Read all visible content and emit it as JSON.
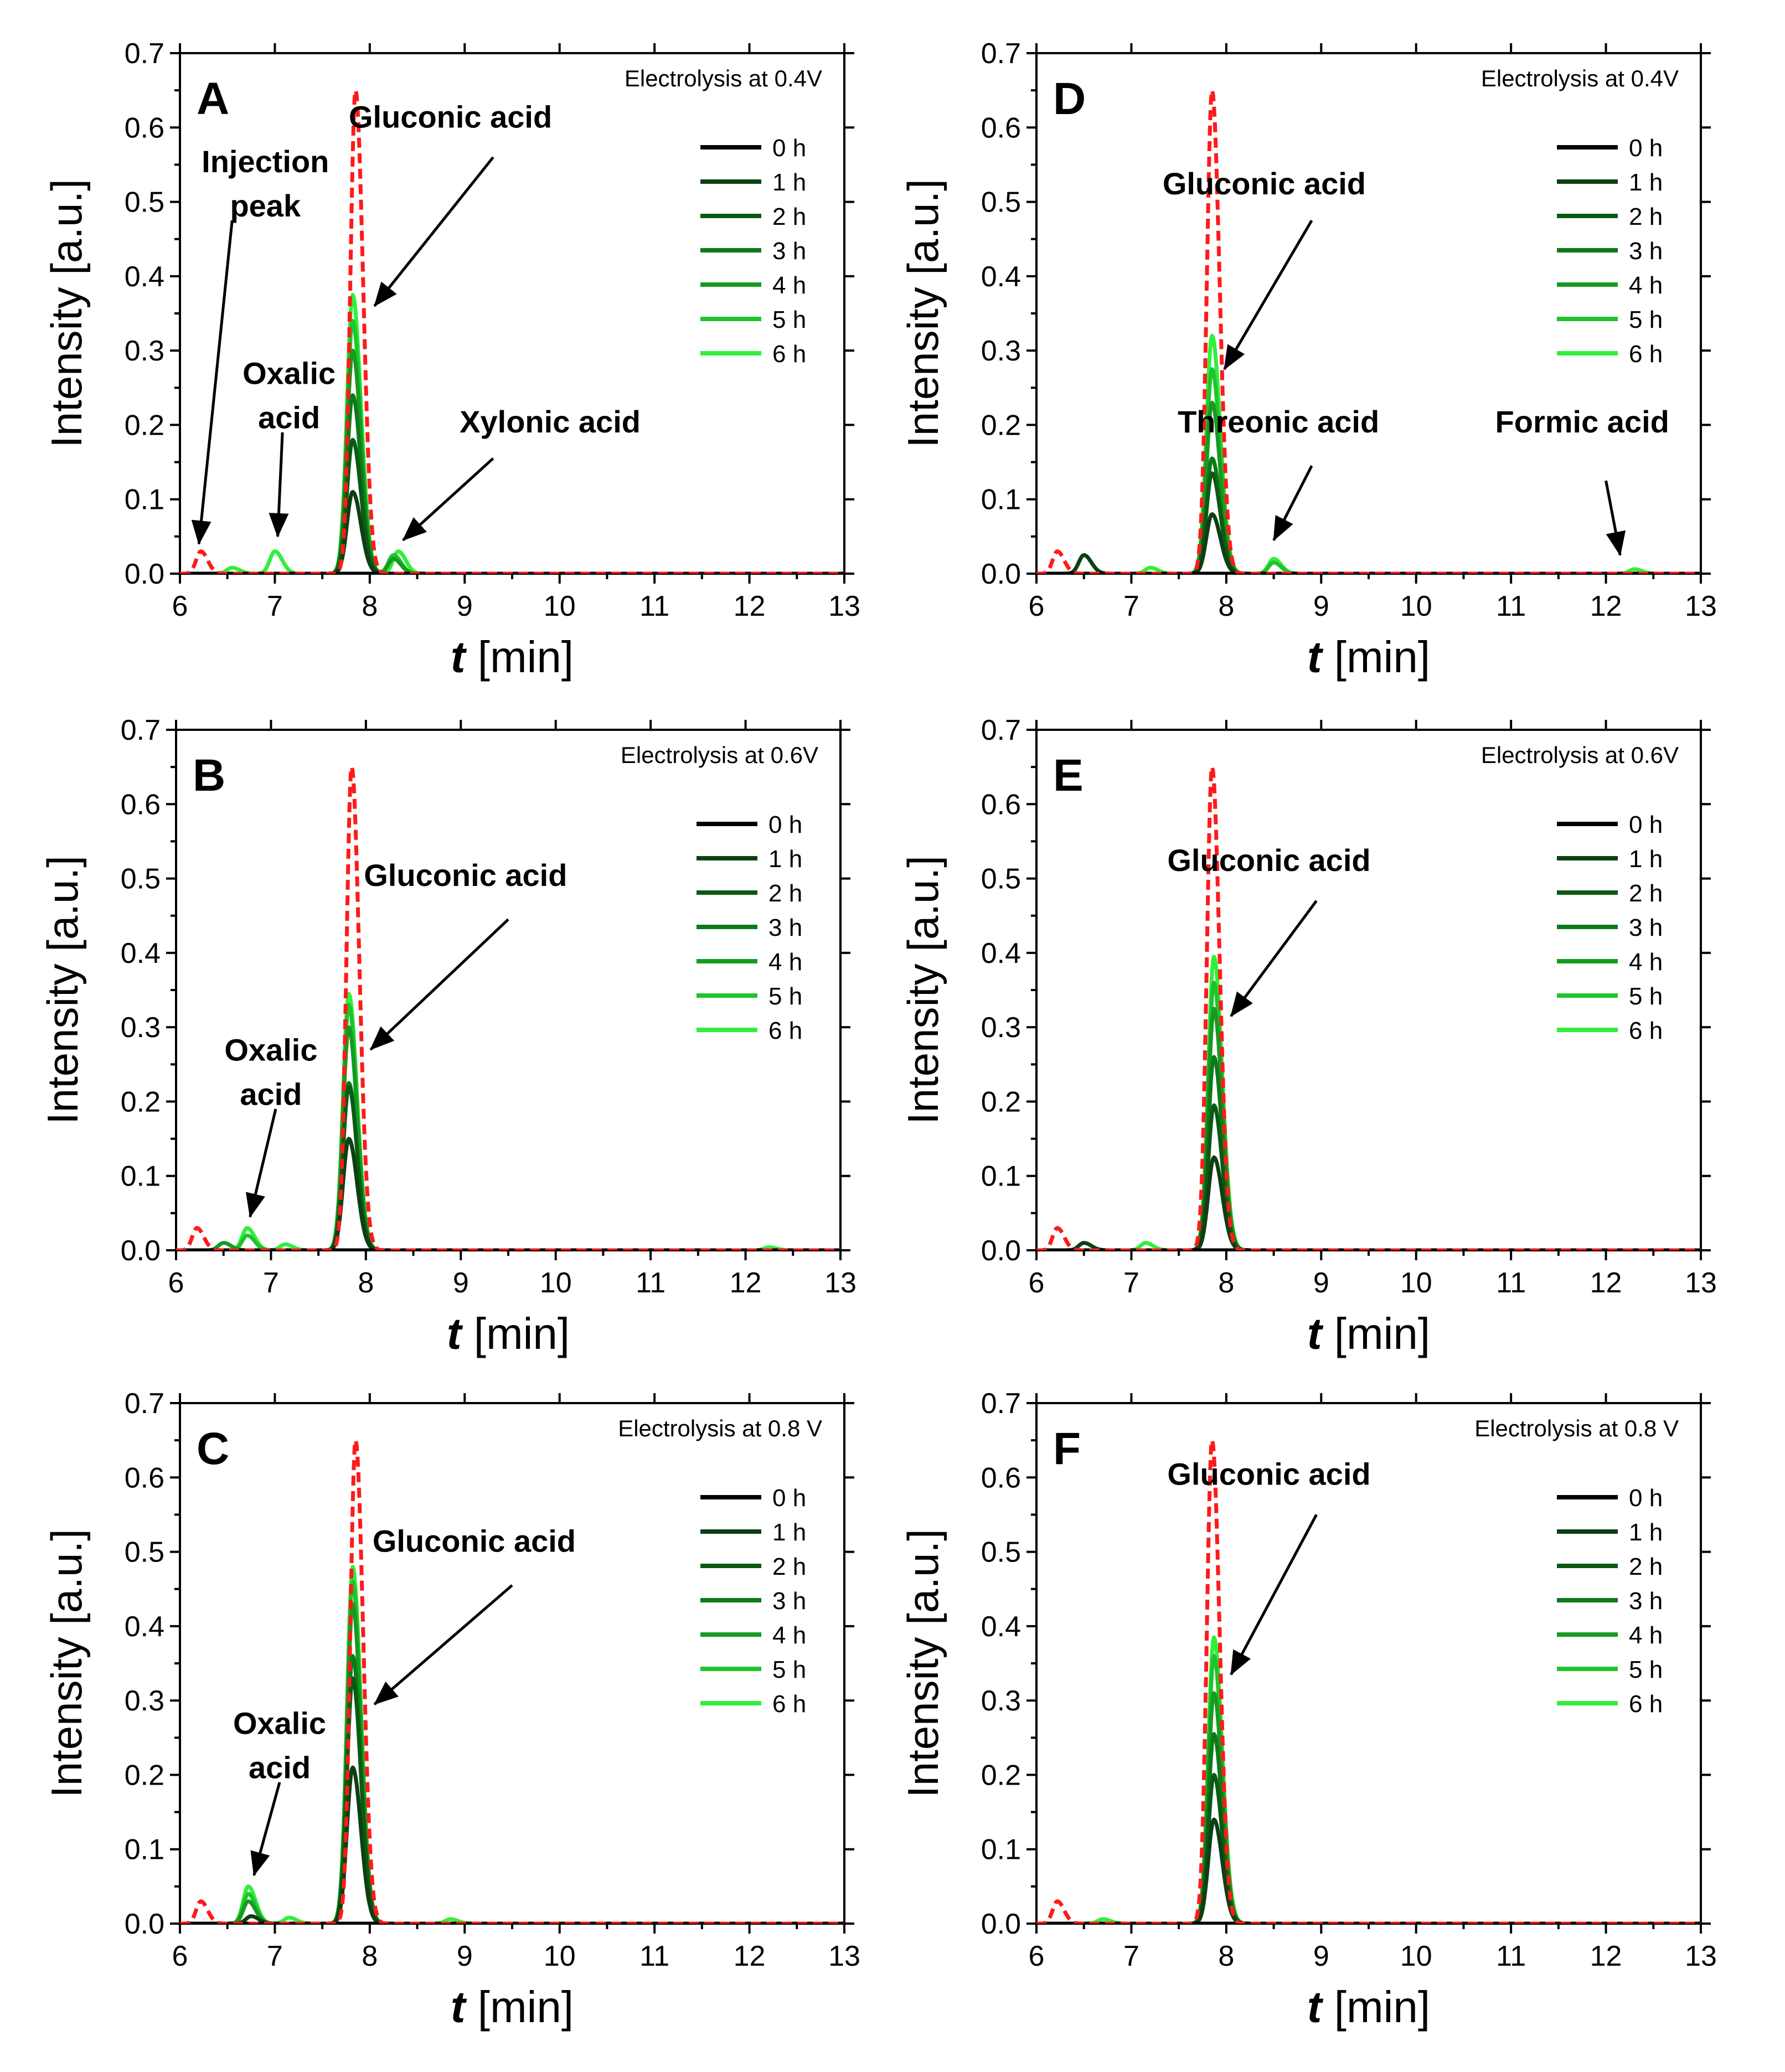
{
  "colors": {
    "reference_dashed": "#ff1a1a",
    "series": [
      "#000000",
      "#0c3f14",
      "#0a5a14",
      "#0b7a19",
      "#169a22",
      "#1fc42d",
      "#33ee3c"
    ]
  },
  "chart_data": [
    {
      "panel": "A",
      "type": "line",
      "condition": "Electrolysis at 0.4V",
      "xlabel_var": "t",
      "xlabel_unit": "[min]",
      "ylabel": "Intensity [a.u.]",
      "xlim": [
        6,
        13
      ],
      "ylim": [
        0,
        0.7
      ],
      "xticks": [
        "6",
        "7",
        "8",
        "9",
        "10",
        "11",
        "12",
        "13"
      ],
      "yticks": [
        "0.0",
        "0.1",
        "0.2",
        "0.3",
        "0.4",
        "0.5",
        "0.6",
        "0.7"
      ],
      "legend_position": "top-right",
      "legend": [
        "0 h",
        "1 h",
        "2 h",
        "3 h",
        "4 h",
        "5 h",
        "6 h"
      ],
      "reference_peaks": [
        {
          "x": 6.22,
          "h": 0.03
        },
        {
          "x": 7.85,
          "h": 0.65
        }
      ],
      "series": [
        {
          "name": "0 h",
          "peaks": []
        },
        {
          "name": "1 h",
          "peaks": [
            {
              "x": 7.82,
              "h": 0.11
            }
          ]
        },
        {
          "name": "2 h",
          "peaks": [
            {
              "x": 7.82,
              "h": 0.18
            }
          ]
        },
        {
          "name": "3 h",
          "peaks": [
            {
              "x": 7.82,
              "h": 0.24
            }
          ]
        },
        {
          "name": "4 h",
          "peaks": [
            {
              "x": 7.82,
              "h": 0.3
            },
            {
              "x": 8.25,
              "h": 0.02
            }
          ]
        },
        {
          "name": "5 h",
          "peaks": [
            {
              "x": 7.82,
              "h": 0.34
            },
            {
              "x": 8.25,
              "h": 0.025
            }
          ]
        },
        {
          "name": "6 h",
          "peaks": [
            {
              "x": 6.55,
              "h": 0.008
            },
            {
              "x": 7.0,
              "h": 0.03
            },
            {
              "x": 7.82,
              "h": 0.375
            },
            {
              "x": 8.3,
              "h": 0.03
            }
          ]
        }
      ],
      "annotations": [
        {
          "lines": [
            "Injection",
            "peak"
          ],
          "text_x": 6.9,
          "text_y": 0.54,
          "arrow_from": [
            6.55,
            0.475
          ],
          "arrow_to": [
            6.2,
            0.04
          ]
        },
        {
          "lines": [
            "Oxalic",
            "acid"
          ],
          "text_x": 7.15,
          "text_y": 0.255,
          "arrow_from": [
            7.08,
            0.19
          ],
          "arrow_to": [
            7.03,
            0.05
          ]
        },
        {
          "lines": [
            "Gluconic acid"
          ],
          "text_x": 8.85,
          "text_y": 0.6,
          "arrow_from": [
            9.3,
            0.56
          ],
          "arrow_to": [
            8.05,
            0.36
          ]
        },
        {
          "lines": [
            "Xylonic acid"
          ],
          "text_x": 9.9,
          "text_y": 0.19,
          "arrow_from": [
            9.3,
            0.155
          ],
          "arrow_to": [
            8.35,
            0.045
          ]
        }
      ]
    },
    {
      "panel": "D",
      "type": "line",
      "condition": "Electrolysis at 0.4V",
      "xlabel_var": "t",
      "xlabel_unit": "[min]",
      "ylabel": "Intensity [a.u.]",
      "xlim": [
        6,
        13
      ],
      "ylim": [
        0,
        0.7
      ],
      "xticks": [
        "6",
        "7",
        "8",
        "9",
        "10",
        "11",
        "12",
        "13"
      ],
      "yticks": [
        "0.0",
        "0.1",
        "0.2",
        "0.3",
        "0.4",
        "0.5",
        "0.6",
        "0.7"
      ],
      "legend_position": "top-right",
      "legend": [
        "0 h",
        "1 h",
        "2 h",
        "3 h",
        "4 h",
        "5 h",
        "6 h"
      ],
      "reference_peaks": [
        {
          "x": 6.22,
          "h": 0.03
        },
        {
          "x": 7.85,
          "h": 0.65
        }
      ],
      "series": [
        {
          "name": "0 h",
          "peaks": []
        },
        {
          "name": "1 h",
          "peaks": [
            {
              "x": 6.5,
              "h": 0.025
            },
            {
              "x": 7.85,
              "h": 0.08
            }
          ]
        },
        {
          "name": "2 h",
          "peaks": [
            {
              "x": 7.85,
              "h": 0.135
            }
          ]
        },
        {
          "name": "3 h",
          "peaks": [
            {
              "x": 7.85,
              "h": 0.155
            }
          ]
        },
        {
          "name": "4 h",
          "peaks": [
            {
              "x": 7.85,
              "h": 0.23
            }
          ]
        },
        {
          "name": "5 h",
          "peaks": [
            {
              "x": 7.85,
              "h": 0.275
            },
            {
              "x": 8.5,
              "h": 0.015
            }
          ]
        },
        {
          "name": "6 h",
          "peaks": [
            {
              "x": 7.2,
              "h": 0.008
            },
            {
              "x": 7.85,
              "h": 0.32
            },
            {
              "x": 8.5,
              "h": 0.02
            },
            {
              "x": 12.3,
              "h": 0.006
            }
          ]
        }
      ],
      "annotations": [
        {
          "lines": [
            "Gluconic acid"
          ],
          "text_x": 8.4,
          "text_y": 0.51,
          "arrow_from": [
            8.9,
            0.475
          ],
          "arrow_to": [
            7.98,
            0.275
          ]
        },
        {
          "lines": [
            "Threonic acid"
          ],
          "text_x": 8.55,
          "text_y": 0.19,
          "arrow_from": [
            8.9,
            0.145
          ],
          "arrow_to": [
            8.5,
            0.045
          ]
        },
        {
          "lines": [
            "Formic acid"
          ],
          "text_x": 11.75,
          "text_y": 0.19,
          "arrow_from": [
            12.0,
            0.125
          ],
          "arrow_to": [
            12.15,
            0.025
          ]
        }
      ]
    },
    {
      "panel": "B",
      "type": "line",
      "condition": "Electrolysis at 0.6V",
      "xlabel_var": "t",
      "xlabel_unit": "[min]",
      "ylabel": "Intensity [a.u.]",
      "xlim": [
        6,
        13
      ],
      "ylim": [
        0,
        0.7
      ],
      "xticks": [
        "6",
        "7",
        "8",
        "9",
        "10",
        "11",
        "12",
        "13"
      ],
      "yticks": [
        "0.0",
        "0.1",
        "0.2",
        "0.3",
        "0.4",
        "0.5",
        "0.6",
        "0.7"
      ],
      "legend_position": "top-right",
      "legend": [
        "0 h",
        "1 h",
        "2 h",
        "3 h",
        "4 h",
        "5 h",
        "6 h"
      ],
      "reference_peaks": [
        {
          "x": 6.22,
          "h": 0.03
        },
        {
          "x": 7.85,
          "h": 0.65
        }
      ],
      "series": [
        {
          "name": "0 h",
          "peaks": []
        },
        {
          "name": "1 h",
          "peaks": [
            {
              "x": 7.82,
              "h": 0.15
            }
          ]
        },
        {
          "name": "2 h",
          "peaks": [
            {
              "x": 7.82,
              "h": 0.22
            }
          ]
        },
        {
          "name": "3 h",
          "peaks": [
            {
              "x": 7.82,
              "h": 0.225
            }
          ]
        },
        {
          "name": "4 h",
          "peaks": [
            {
              "x": 6.5,
              "h": 0.01
            },
            {
              "x": 7.82,
              "h": 0.3
            }
          ]
        },
        {
          "name": "5 h",
          "peaks": [
            {
              "x": 6.75,
              "h": 0.02
            },
            {
              "x": 7.82,
              "h": 0.33
            }
          ]
        },
        {
          "name": "6 h",
          "peaks": [
            {
              "x": 6.75,
              "h": 0.03
            },
            {
              "x": 7.15,
              "h": 0.008
            },
            {
              "x": 7.82,
              "h": 0.345
            },
            {
              "x": 12.25,
              "h": 0.004
            }
          ]
        }
      ],
      "annotations": [
        {
          "lines": [
            "Gluconic acid"
          ],
          "text_x": 9.05,
          "text_y": 0.49,
          "arrow_from": [
            9.5,
            0.445
          ],
          "arrow_to": [
            8.05,
            0.27
          ]
        },
        {
          "lines": [
            "Oxalic",
            "acid"
          ],
          "text_x": 7.0,
          "text_y": 0.255,
          "arrow_from": [
            7.05,
            0.19
          ],
          "arrow_to": [
            6.78,
            0.045
          ]
        }
      ]
    },
    {
      "panel": "E",
      "type": "line",
      "condition": "Electrolysis at 0.6V",
      "xlabel_var": "t",
      "xlabel_unit": "[min]",
      "ylabel": "Intensity [a.u.]",
      "xlim": [
        6,
        13
      ],
      "ylim": [
        0,
        0.7
      ],
      "xticks": [
        "6",
        "7",
        "8",
        "9",
        "10",
        "11",
        "12",
        "13"
      ],
      "yticks": [
        "0.0",
        "0.1",
        "0.2",
        "0.3",
        "0.4",
        "0.5",
        "0.6",
        "0.7"
      ],
      "legend_position": "top-right",
      "legend": [
        "0 h",
        "1 h",
        "2 h",
        "3 h",
        "4 h",
        "5 h",
        "6 h"
      ],
      "reference_peaks": [
        {
          "x": 6.22,
          "h": 0.03
        },
        {
          "x": 7.85,
          "h": 0.65
        }
      ],
      "series": [
        {
          "name": "0 h",
          "peaks": []
        },
        {
          "name": "1 h",
          "peaks": [
            {
              "x": 6.5,
              "h": 0.01
            },
            {
              "x": 7.87,
              "h": 0.125
            }
          ]
        },
        {
          "name": "2 h",
          "peaks": [
            {
              "x": 7.87,
              "h": 0.195
            }
          ]
        },
        {
          "name": "3 h",
          "peaks": [
            {
              "x": 7.87,
              "h": 0.26
            }
          ]
        },
        {
          "name": "4 h",
          "peaks": [
            {
              "x": 7.87,
              "h": 0.325
            }
          ]
        },
        {
          "name": "5 h",
          "peaks": [
            {
              "x": 7.87,
              "h": 0.36
            }
          ]
        },
        {
          "name": "6 h",
          "peaks": [
            {
              "x": 7.15,
              "h": 0.01
            },
            {
              "x": 7.87,
              "h": 0.395
            }
          ]
        }
      ],
      "annotations": [
        {
          "lines": [
            "Gluconic acid"
          ],
          "text_x": 8.45,
          "text_y": 0.51,
          "arrow_from": [
            8.95,
            0.47
          ],
          "arrow_to": [
            8.05,
            0.315
          ]
        }
      ]
    },
    {
      "panel": "C",
      "type": "line",
      "condition": "Electrolysis at 0.8 V",
      "xlabel_var": "t",
      "xlabel_unit": "[min]",
      "ylabel": "Intensity [a.u.]",
      "xlim": [
        6,
        13
      ],
      "ylim": [
        0,
        0.7
      ],
      "xticks": [
        "6",
        "7",
        "8",
        "9",
        "10",
        "11",
        "12",
        "13"
      ],
      "yticks": [
        "0.0",
        "0.1",
        "0.2",
        "0.3",
        "0.4",
        "0.5",
        "0.6",
        "0.7"
      ],
      "legend_position": "top-right",
      "legend": [
        "0 h",
        "1 h",
        "2 h",
        "3 h",
        "4 h",
        "5 h",
        "6 h"
      ],
      "reference_peaks": [
        {
          "x": 6.22,
          "h": 0.03
        },
        {
          "x": 7.85,
          "h": 0.65
        }
      ],
      "series": [
        {
          "name": "0 h",
          "peaks": []
        },
        {
          "name": "1 h",
          "peaks": [
            {
              "x": 6.75,
              "h": 0.01
            },
            {
              "x": 7.82,
              "h": 0.21
            }
          ]
        },
        {
          "name": "2 h",
          "peaks": [
            {
              "x": 7.82,
              "h": 0.33
            }
          ]
        },
        {
          "name": "3 h",
          "peaks": [
            {
              "x": 7.82,
              "h": 0.36
            }
          ]
        },
        {
          "name": "4 h",
          "peaks": [
            {
              "x": 6.72,
              "h": 0.03
            },
            {
              "x": 7.82,
              "h": 0.43
            }
          ]
        },
        {
          "name": "5 h",
          "peaks": [
            {
              "x": 6.72,
              "h": 0.04
            },
            {
              "x": 7.82,
              "h": 0.46
            }
          ]
        },
        {
          "name": "6 h",
          "peaks": [
            {
              "x": 6.72,
              "h": 0.05
            },
            {
              "x": 7.15,
              "h": 0.008
            },
            {
              "x": 7.82,
              "h": 0.48
            },
            {
              "x": 8.85,
              "h": 0.006
            }
          ]
        }
      ],
      "annotations": [
        {
          "lines": [
            "Gluconic acid"
          ],
          "text_x": 9.1,
          "text_y": 0.5,
          "arrow_from": [
            9.5,
            0.455
          ],
          "arrow_to": [
            8.05,
            0.295
          ]
        },
        {
          "lines": [
            "Oxalic",
            "acid"
          ],
          "text_x": 7.05,
          "text_y": 0.255,
          "arrow_from": [
            7.05,
            0.19
          ],
          "arrow_to": [
            6.78,
            0.065
          ]
        }
      ]
    },
    {
      "panel": "F",
      "type": "line",
      "condition": "Electrolysis at 0.8 V",
      "xlabel_var": "t",
      "xlabel_unit": "[min]",
      "ylabel": "Intensity [a.u.]",
      "xlim": [
        6,
        13
      ],
      "ylim": [
        0,
        0.7
      ],
      "xticks": [
        "6",
        "7",
        "8",
        "9",
        "10",
        "11",
        "12",
        "13"
      ],
      "yticks": [
        "0.0",
        "0.1",
        "0.2",
        "0.3",
        "0.4",
        "0.5",
        "0.6",
        "0.7"
      ],
      "legend_position": "top-right",
      "legend": [
        "0 h",
        "1 h",
        "2 h",
        "3 h",
        "4 h",
        "5 h",
        "6 h"
      ],
      "reference_peaks": [
        {
          "x": 6.22,
          "h": 0.03
        },
        {
          "x": 7.85,
          "h": 0.65
        }
      ],
      "series": [
        {
          "name": "0 h",
          "peaks": []
        },
        {
          "name": "1 h",
          "peaks": [
            {
              "x": 7.87,
              "h": 0.14
            }
          ]
        },
        {
          "name": "2 h",
          "peaks": [
            {
              "x": 7.87,
              "h": 0.2
            }
          ]
        },
        {
          "name": "3 h",
          "peaks": [
            {
              "x": 7.87,
              "h": 0.255
            }
          ]
        },
        {
          "name": "4 h",
          "peaks": [
            {
              "x": 7.87,
              "h": 0.31
            }
          ]
        },
        {
          "name": "5 h",
          "peaks": [
            {
              "x": 7.87,
              "h": 0.36
            }
          ]
        },
        {
          "name": "6 h",
          "peaks": [
            {
              "x": 6.7,
              "h": 0.006
            },
            {
              "x": 7.87,
              "h": 0.385
            }
          ]
        }
      ],
      "annotations": [
        {
          "lines": [
            "Gluconic acid"
          ],
          "text_x": 8.45,
          "text_y": 0.59,
          "arrow_from": [
            8.95,
            0.55
          ],
          "arrow_to": [
            8.05,
            0.335
          ]
        }
      ]
    }
  ]
}
